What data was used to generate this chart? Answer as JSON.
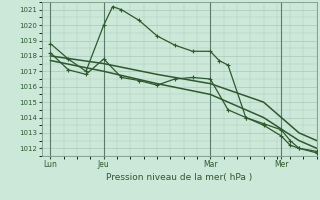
{
  "bg_color": "#cce8d8",
  "grid_color": "#aac8bc",
  "line_color": "#2d5a2d",
  "title": "Pression niveau de la mer( hPa )",
  "ylim": [
    1011.5,
    1021.5
  ],
  "yticks": [
    1012,
    1013,
    1014,
    1015,
    1016,
    1017,
    1018,
    1019,
    1020,
    1021
  ],
  "day_labels": [
    "Lun",
    "Jeu",
    "Mar",
    "Mer"
  ],
  "day_positions": [
    0,
    24,
    72,
    104
  ],
  "xlim": [
    -4,
    120
  ],
  "series1_x": [
    0,
    8,
    16,
    24,
    28,
    32,
    40,
    48,
    56,
    64,
    72,
    76,
    80,
    88,
    96,
    104,
    108,
    112,
    120
  ],
  "series1_y": [
    1018.8,
    1017.8,
    1017.0,
    1020.0,
    1021.2,
    1021.0,
    1020.3,
    1019.3,
    1018.7,
    1018.3,
    1018.3,
    1017.7,
    1017.4,
    1014.0,
    1013.6,
    1013.2,
    1012.5,
    1012.0,
    1011.7
  ],
  "series2_x": [
    0,
    8,
    16,
    24,
    32,
    40,
    48,
    56,
    64,
    72,
    80,
    88,
    96,
    104,
    108,
    112,
    120
  ],
  "series2_y": [
    1018.2,
    1017.1,
    1016.8,
    1017.8,
    1016.6,
    1016.4,
    1016.1,
    1016.5,
    1016.6,
    1016.5,
    1014.5,
    1014.0,
    1013.5,
    1012.8,
    1012.2,
    1012.0,
    1011.8
  ],
  "series3_x": [
    0,
    24,
    48,
    72,
    96,
    112,
    120
  ],
  "series3_y": [
    1018.0,
    1017.5,
    1016.8,
    1016.2,
    1015.0,
    1013.0,
    1012.5
  ],
  "series4_x": [
    0,
    24,
    48,
    72,
    96,
    112,
    120
  ],
  "series4_y": [
    1017.7,
    1017.0,
    1016.2,
    1015.5,
    1014.0,
    1012.5,
    1012.0
  ]
}
